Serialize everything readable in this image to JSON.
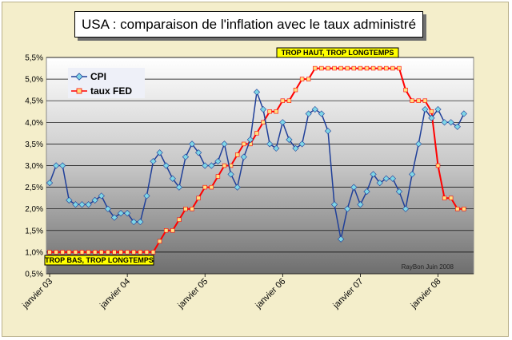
{
  "chart_data": {
    "type": "line",
    "title": "USA : comparaison de l'inflation avec le taux administré",
    "xlabel": "",
    "ylabel": "",
    "ylim": [
      0.5,
      5.5
    ],
    "y_ticks": [
      "0,5%",
      "1,0%",
      "1,5%",
      "2,0%",
      "2,5%",
      "3,0%",
      "3,5%",
      "4,0%",
      "4,5%",
      "5,0%",
      "5,5%"
    ],
    "x_tick_labels": [
      "janvier 03",
      "janvier 04",
      "janvier 05",
      "janvier 06",
      "janvier 07",
      "janvier 08"
    ],
    "grid": true,
    "legend_position": "top-left",
    "series": [
      {
        "name": "CPI",
        "color": "#1f3f99",
        "marker_color": "#7fd6e6",
        "start": "2003-01",
        "values": [
          2.6,
          3.0,
          3.0,
          2.2,
          2.1,
          2.1,
          2.1,
          2.2,
          2.3,
          2.0,
          1.8,
          1.9,
          1.9,
          1.7,
          1.7,
          2.3,
          3.1,
          3.3,
          3.0,
          2.7,
          2.5,
          3.2,
          3.5,
          3.3,
          3.0,
          3.0,
          3.1,
          3.5,
          2.8,
          2.5,
          3.2,
          3.6,
          4.7,
          4.3,
          3.5,
          3.4,
          4.0,
          3.6,
          3.4,
          3.5,
          4.2,
          4.3,
          4.2,
          3.8,
          2.1,
          1.3,
          2.0,
          2.5,
          2.1,
          2.4,
          2.8,
          2.6,
          2.7,
          2.7,
          2.4,
          2.0,
          2.8,
          3.5,
          4.3,
          4.1,
          4.3,
          4.0,
          4.0,
          3.9,
          4.2
        ]
      },
      {
        "name": "taux FED",
        "color": "#ff0000",
        "marker_color": "#ffe080",
        "start": "2003-01",
        "values": [
          1.0,
          1.0,
          1.0,
          1.0,
          1.0,
          1.0,
          1.0,
          1.0,
          1.0,
          1.0,
          1.0,
          1.0,
          1.0,
          1.0,
          1.0,
          1.0,
          1.0,
          1.25,
          1.5,
          1.5,
          1.75,
          2.0,
          2.0,
          2.25,
          2.5,
          2.5,
          2.75,
          3.0,
          3.0,
          3.25,
          3.5,
          3.5,
          3.75,
          4.0,
          4.25,
          4.25,
          4.5,
          4.5,
          4.75,
          5.0,
          5.0,
          5.25,
          5.25,
          5.25,
          5.25,
          5.25,
          5.25,
          5.25,
          5.25,
          5.25,
          5.25,
          5.25,
          5.25,
          5.25,
          5.25,
          4.75,
          4.5,
          4.5,
          4.5,
          4.25,
          3.0,
          2.25,
          2.25,
          2.0,
          2.0
        ]
      }
    ],
    "annotations": [
      "TROP HAUT, TROP LONGTEMPS",
      "TROP BAS, TROP LONGTEMPS"
    ],
    "credit": "RayBon Juin 2008"
  }
}
